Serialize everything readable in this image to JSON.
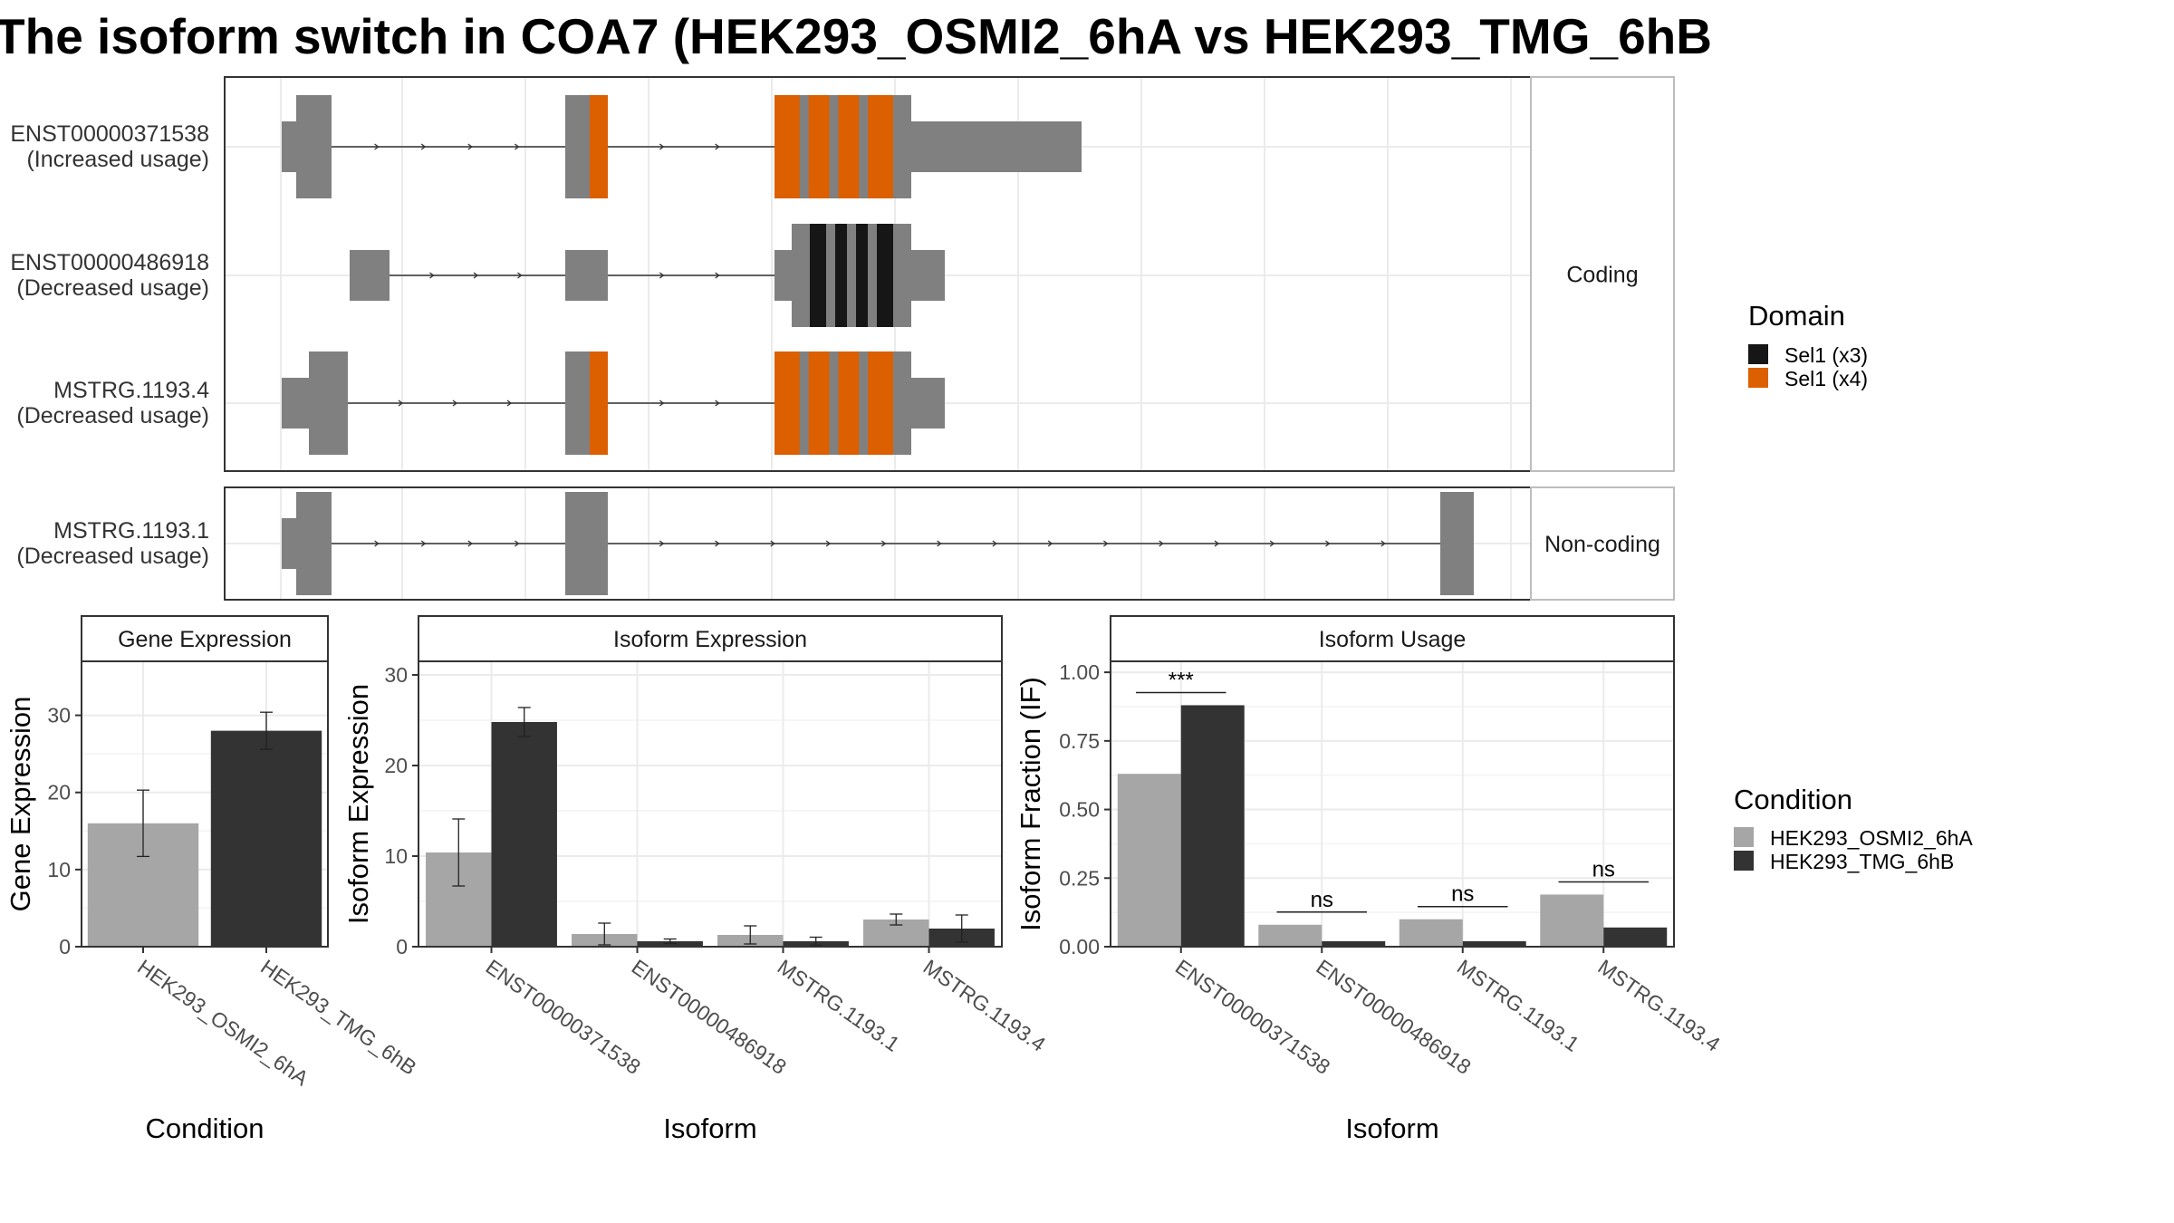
{
  "title": "The isoform switch in COA7 (HEK293_OSMI2_6hA vs HEK293_TMG_6hB",
  "colors": {
    "exon": "#808080",
    "sel1_x3": "#161616",
    "sel1_x4": "#dc5f00",
    "cond_a": "#a6a6a6",
    "cond_b": "#333333"
  },
  "isoform_panel": {
    "facets": [
      {
        "label": "Coding",
        "rows": [
          {
            "id": "ENST00000371538",
            "usage": "(Increased usage)"
          },
          {
            "id": "ENST00000486918",
            "usage": "(Decreased usage)"
          },
          {
            "id": "MSTRG.1193.4",
            "usage": "(Decreased usage)"
          }
        ]
      },
      {
        "label": "Non-coding",
        "rows": [
          {
            "id": "MSTRG.1193.1",
            "usage": "(Decreased usage)"
          }
        ]
      }
    ],
    "domain_legend": {
      "title": "Domain",
      "items": [
        {
          "label": "Sel1 (x3)",
          "color_key": "sel1_x3"
        },
        {
          "label": "Sel1 (x4)",
          "color_key": "sel1_x4"
        }
      ]
    }
  },
  "condition_legend": {
    "title": "Condition",
    "items": [
      {
        "label": "HEK293_OSMI2_6hA",
        "color_key": "cond_a"
      },
      {
        "label": "HEK293_TMG_6hB",
        "color_key": "cond_b"
      }
    ]
  },
  "chart_data": [
    {
      "type": "bar",
      "title": "Gene Expression",
      "xlabel": "Condition",
      "ylabel": "Gene Expression",
      "ylim": [
        0,
        37
      ],
      "yticks": [
        0,
        10,
        20,
        30
      ],
      "categories": [
        "HEK293_OSMI2_6hA",
        "HEK293_TMG_6hB"
      ],
      "series": [
        {
          "name": "HEK293_OSMI2_6hA",
          "values": [
            16.0,
            null
          ],
          "err": [
            4.3,
            null
          ]
        },
        {
          "name": "HEK293_TMG_6hB",
          "values": [
            null,
            28.0
          ],
          "err": [
            null,
            2.4
          ]
        }
      ]
    },
    {
      "type": "bar",
      "title": "Isoform Expression",
      "xlabel": "Isoform",
      "ylabel": "Isoform Expression",
      "ylim": [
        0,
        31.5
      ],
      "yticks": [
        0,
        10,
        20,
        30
      ],
      "categories": [
        "ENST00000371538",
        "ENST00000486918",
        "MSTRG.1193.1",
        "MSTRG.1193.4"
      ],
      "series": [
        {
          "name": "HEK293_OSMI2_6hA",
          "values": [
            10.4,
            1.4,
            1.3,
            3.0
          ],
          "err": [
            3.7,
            1.2,
            1.0,
            0.6
          ]
        },
        {
          "name": "HEK293_TMG_6hB",
          "values": [
            24.8,
            0.6,
            0.6,
            2.0
          ],
          "err": [
            1.6,
            0.25,
            0.45,
            1.5
          ]
        }
      ]
    },
    {
      "type": "bar",
      "title": "Isoform Usage",
      "xlabel": "Isoform",
      "ylabel": "Isoform Fraction (IF)",
      "ylim": [
        0,
        1.04
      ],
      "yticks": [
        0.0,
        0.25,
        0.5,
        0.75,
        1.0
      ],
      "ytick_labels": [
        "0.00",
        "0.25",
        "0.50",
        "0.75",
        "1.00"
      ],
      "categories": [
        "ENST00000371538",
        "ENST00000486918",
        "MSTRG.1193.1",
        "MSTRG.1193.4"
      ],
      "series": [
        {
          "name": "HEK293_OSMI2_6hA",
          "values": [
            0.63,
            0.08,
            0.1,
            0.19
          ]
        },
        {
          "name": "HEK293_TMG_6hB",
          "values": [
            0.88,
            0.02,
            0.02,
            0.07
          ]
        }
      ],
      "significance": [
        "***",
        "ns",
        "ns",
        "ns"
      ]
    }
  ]
}
